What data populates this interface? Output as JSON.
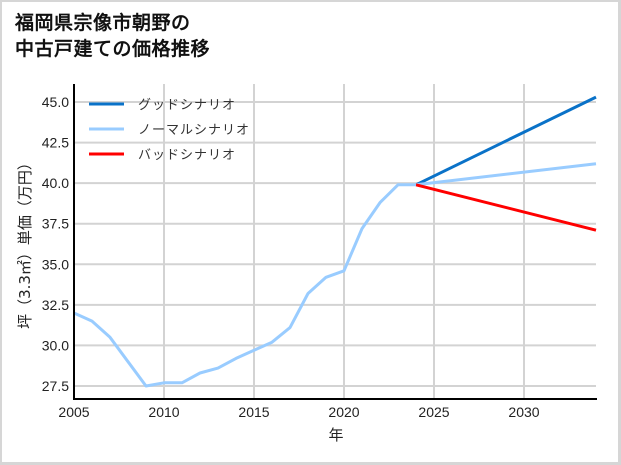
{
  "title": "福岡県宗像市朝野の\n中古戸建ての価格推移",
  "chart_data": {
    "type": "line",
    "title": "福岡県宗像市朝野の中古戸建ての価格推移",
    "xlabel": "年",
    "ylabel": "坪（3.3㎡）単価（万円）",
    "xlim": [
      2005,
      2034
    ],
    "ylim": [
      26.7,
      46.3
    ],
    "xticks": [
      2005,
      2010,
      2015,
      2020,
      2025,
      2030
    ],
    "yticks": [
      27.5,
      30.0,
      32.5,
      35.0,
      37.5,
      40.0,
      42.5,
      45.0
    ],
    "ytick_labels": [
      "27.5",
      "30.0",
      "32.5",
      "35.0",
      "37.5",
      "40.0",
      "42.5",
      "45.0"
    ],
    "grid": true,
    "legend_position": "upper left",
    "historical": {
      "x": [
        2005,
        2006,
        2007,
        2008,
        2009,
        2010,
        2011,
        2012,
        2013,
        2014,
        2015,
        2016,
        2017,
        2018,
        2019,
        2020,
        2021,
        2022,
        2023,
        2024
      ],
      "y": [
        32.0,
        31.5,
        30.5,
        29.0,
        27.5,
        27.7,
        27.7,
        28.3,
        28.6,
        29.2,
        29.7,
        30.2,
        31.1,
        33.2,
        34.2,
        34.6,
        37.2,
        38.8,
        39.9,
        39.9
      ]
    },
    "series": [
      {
        "name": "グッドシナリオ",
        "color": "#0a72c8",
        "x": [
          2024,
          2034
        ],
        "y": [
          39.9,
          45.3
        ]
      },
      {
        "name": "ノーマルシナリオ",
        "color": "#99ccff",
        "x": [
          2024,
          2034
        ],
        "y": [
          39.9,
          41.2
        ]
      },
      {
        "name": "バッドシナリオ",
        "color": "#ff0000",
        "x": [
          2024,
          2034
        ],
        "y": [
          39.9,
          37.1
        ]
      }
    ]
  },
  "legend": {
    "items": [
      {
        "label": "グッドシナリオ",
        "color": "#0a72c8"
      },
      {
        "label": "ノーマルシナリオ",
        "color": "#99ccff"
      },
      {
        "label": "バッドシナリオ",
        "color": "#ff0000"
      }
    ]
  }
}
